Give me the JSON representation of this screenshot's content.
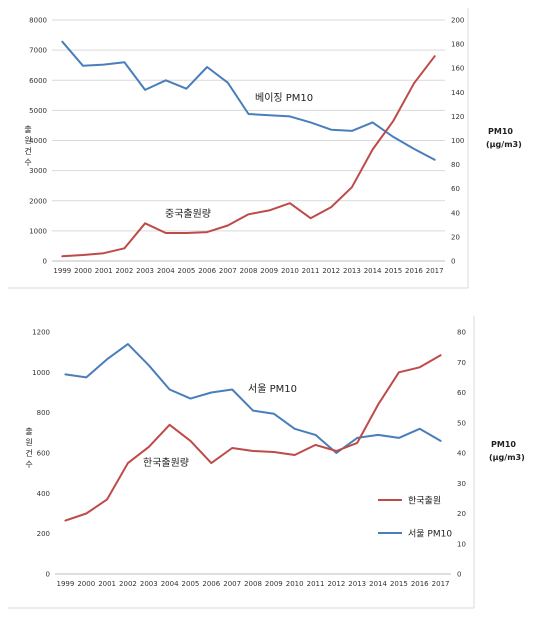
{
  "chart_data": [
    {
      "type": "line",
      "categories": [
        "1999",
        "2000",
        "2001",
        "2002",
        "2003",
        "2004",
        "2005",
        "2006",
        "2007",
        "2008",
        "2009",
        "2010",
        "2011",
        "2012",
        "2013",
        "2014",
        "2015",
        "2016",
        "2017"
      ],
      "ylabel": "출원건수",
      "y2label": [
        "PM10",
        "(μg/m3)"
      ],
      "ylim": [
        0,
        8000
      ],
      "y2lim": [
        0,
        200
      ],
      "yticks": [
        "0",
        "1000",
        "2000",
        "3000",
        "4000",
        "5000",
        "6000",
        "7000",
        "8000"
      ],
      "y2ticks": [
        "0",
        "20",
        "40",
        "60",
        "80",
        "100",
        "120",
        "140",
        "160",
        "180",
        "200"
      ],
      "grid": true,
      "series": [
        {
          "name": "베이징 PM10",
          "axis": "right",
          "color": "#4a7ebb",
          "values": [
            182,
            162,
            163,
            165,
            142,
            150,
            143,
            161,
            148,
            122,
            121,
            120,
            115,
            109,
            108,
            115,
            103,
            93,
            84
          ]
        },
        {
          "name": "중국출원량",
          "axis": "left",
          "color": "#be4b48",
          "values": [
            160,
            200,
            260,
            420,
            1250,
            930,
            930,
            960,
            1180,
            1550,
            1680,
            1920,
            1420,
            1790,
            2450,
            3700,
            4650,
            5900,
            6800
          ]
        }
      ],
      "annotations": [
        {
          "text": "베이징 PM10",
          "series": 0
        },
        {
          "text": "중국출원량",
          "series": 1
        }
      ],
      "legend": null
    },
    {
      "type": "line",
      "categories": [
        "1999",
        "2000",
        "2001",
        "2002",
        "2003",
        "2004",
        "2005",
        "2006",
        "2007",
        "2008",
        "2009",
        "2010",
        "2011",
        "2012",
        "2013",
        "2014",
        "2015",
        "2016",
        "2017"
      ],
      "ylabel": "출원건수",
      "y2label": [
        "PM10",
        "(μg/m3)"
      ],
      "ylim": [
        0,
        1200
      ],
      "y2lim": [
        0,
        80
      ],
      "yticks": [
        "0",
        "200",
        "400",
        "600",
        "800",
        "1000",
        "1200"
      ],
      "y2ticks": [
        "0",
        "10",
        "20",
        "30",
        "40",
        "50",
        "60",
        "70",
        "80"
      ],
      "grid": false,
      "series": [
        {
          "name": "서울 PM10",
          "axis": "right",
          "color": "#4a7ebb",
          "values": [
            66,
            65,
            71,
            76,
            69,
            61,
            58,
            60,
            61,
            54,
            53,
            48,
            46,
            40,
            45,
            46,
            45,
            48,
            44
          ]
        },
        {
          "name": "한국출원",
          "axis": "left",
          "color": "#be4b48",
          "values": [
            265,
            300,
            370,
            550,
            630,
            740,
            660,
            550,
            625,
            610,
            605,
            590,
            640,
            610,
            650,
            840,
            1000,
            1025,
            1085
          ]
        }
      ],
      "annotations": [
        {
          "text": "서울 PM10",
          "series": 0
        },
        {
          "text": "한국출원량",
          "series": 1
        }
      ],
      "legend": {
        "position": "bottom-right",
        "entries": [
          "한국출원",
          "서울 PM10"
        ]
      }
    }
  ]
}
